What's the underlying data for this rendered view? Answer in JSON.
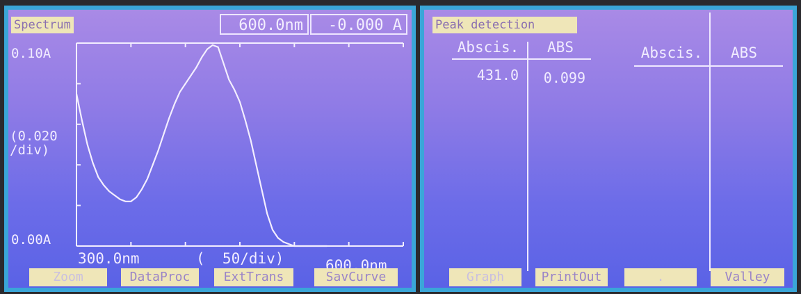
{
  "left_panel": {
    "mode_tag": "Spectrum",
    "wavelength_readout": "600.0nm",
    "absorbance_readout": "-0.000 A",
    "y_top_label": "0.10A",
    "y_scale_label": "(0.020\n/div)",
    "y_bottom_label": "0.00A",
    "x_start_label": "300.0nm",
    "x_scale_label": "(  50/div)",
    "x_end_label": "600.0nm",
    "buttons": [
      "Zoom",
      "DataProc",
      "ExtTrans",
      "SavCurve"
    ]
  },
  "right_panel": {
    "mode_tag": "Peak detection",
    "headers": [
      "Abscis.",
      "ABS",
      "Abscis.",
      "ABS"
    ],
    "rows": [
      {
        "abscis": "431.0",
        "abs": "0.099"
      }
    ],
    "buttons": [
      "Graph",
      "PrintOut",
      ".",
      "Valley"
    ]
  },
  "chart_data": {
    "type": "line",
    "title": "",
    "xlabel": "",
    "ylabel": "",
    "xlim": [
      300,
      600
    ],
    "ylim": [
      0,
      0.1
    ],
    "series": [
      {
        "x": [
          300,
          305,
          310,
          315,
          320,
          325,
          330,
          335,
          340,
          345,
          350,
          355,
          360,
          365,
          370,
          375,
          380,
          385,
          390,
          395,
          400,
          405,
          410,
          415,
          420,
          425,
          430,
          435,
          440,
          445,
          450,
          455,
          460,
          465,
          470,
          475,
          480,
          485,
          490,
          495,
          500,
          510,
          520,
          530
        ],
        "y": [
          0.075,
          0.062,
          0.05,
          0.041,
          0.034,
          0.03,
          0.027,
          0.025,
          0.023,
          0.022,
          0.022,
          0.024,
          0.028,
          0.033,
          0.04,
          0.047,
          0.055,
          0.063,
          0.07,
          0.076,
          0.08,
          0.084,
          0.088,
          0.093,
          0.097,
          0.099,
          0.098,
          0.09,
          0.082,
          0.077,
          0.071,
          0.062,
          0.052,
          0.04,
          0.028,
          0.016,
          0.008,
          0.004,
          0.002,
          0.001,
          0.0,
          0.0,
          0.0,
          0.0
        ]
      }
    ],
    "peak": {
      "x": 431.0,
      "y": 0.099
    }
  },
  "colors": {
    "trace": "#f3eeff",
    "label_bg": "#efe6b8",
    "bezel": "#3aa6d8"
  }
}
